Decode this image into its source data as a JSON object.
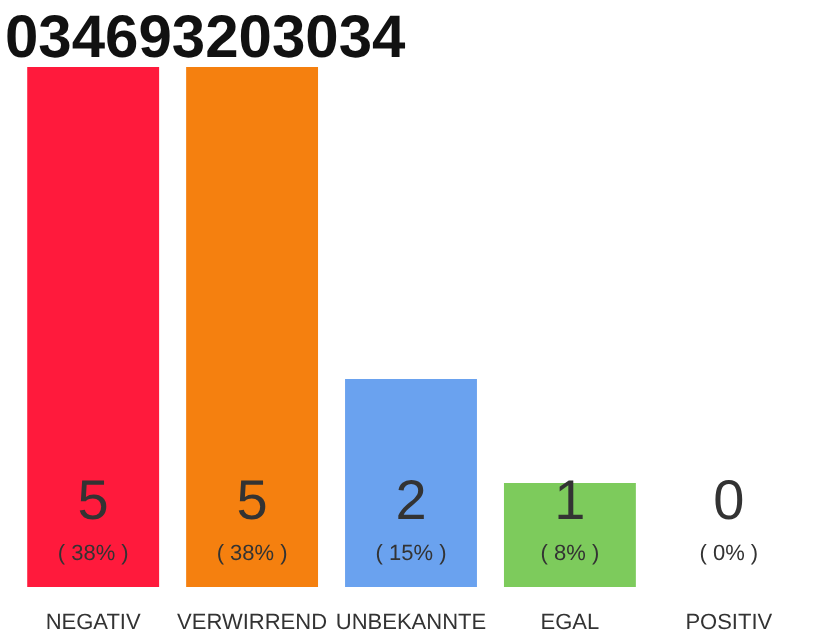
{
  "chart_data": {
    "type": "bar",
    "title": "034693203034",
    "categories": [
      "NEGATIV",
      "VERWIRREND",
      "UNBEKANNTE",
      "EGAL",
      "POSITIV"
    ],
    "values": [
      5,
      5,
      2,
      1,
      0
    ],
    "colors": [
      "#ff1a3c",
      "#f5800f",
      "#6aa2ef",
      "#7dcb5c",
      "#cccccc"
    ],
    "data_labels": true,
    "annotations": [
      {
        "text": "( 38% )",
        "x": "NEGATIV",
        "y": 0
      },
      {
        "text": "( 38% )",
        "x": "VERWIRREND",
        "y": 0
      },
      {
        "text": "( 15% )",
        "x": "UNBEKANNTE",
        "y": 0
      },
      {
        "text": "( 8% )",
        "x": "EGAL",
        "y": 0
      },
      {
        "text": "( 0% )",
        "x": "POSITIV",
        "y": 0
      }
    ]
  }
}
